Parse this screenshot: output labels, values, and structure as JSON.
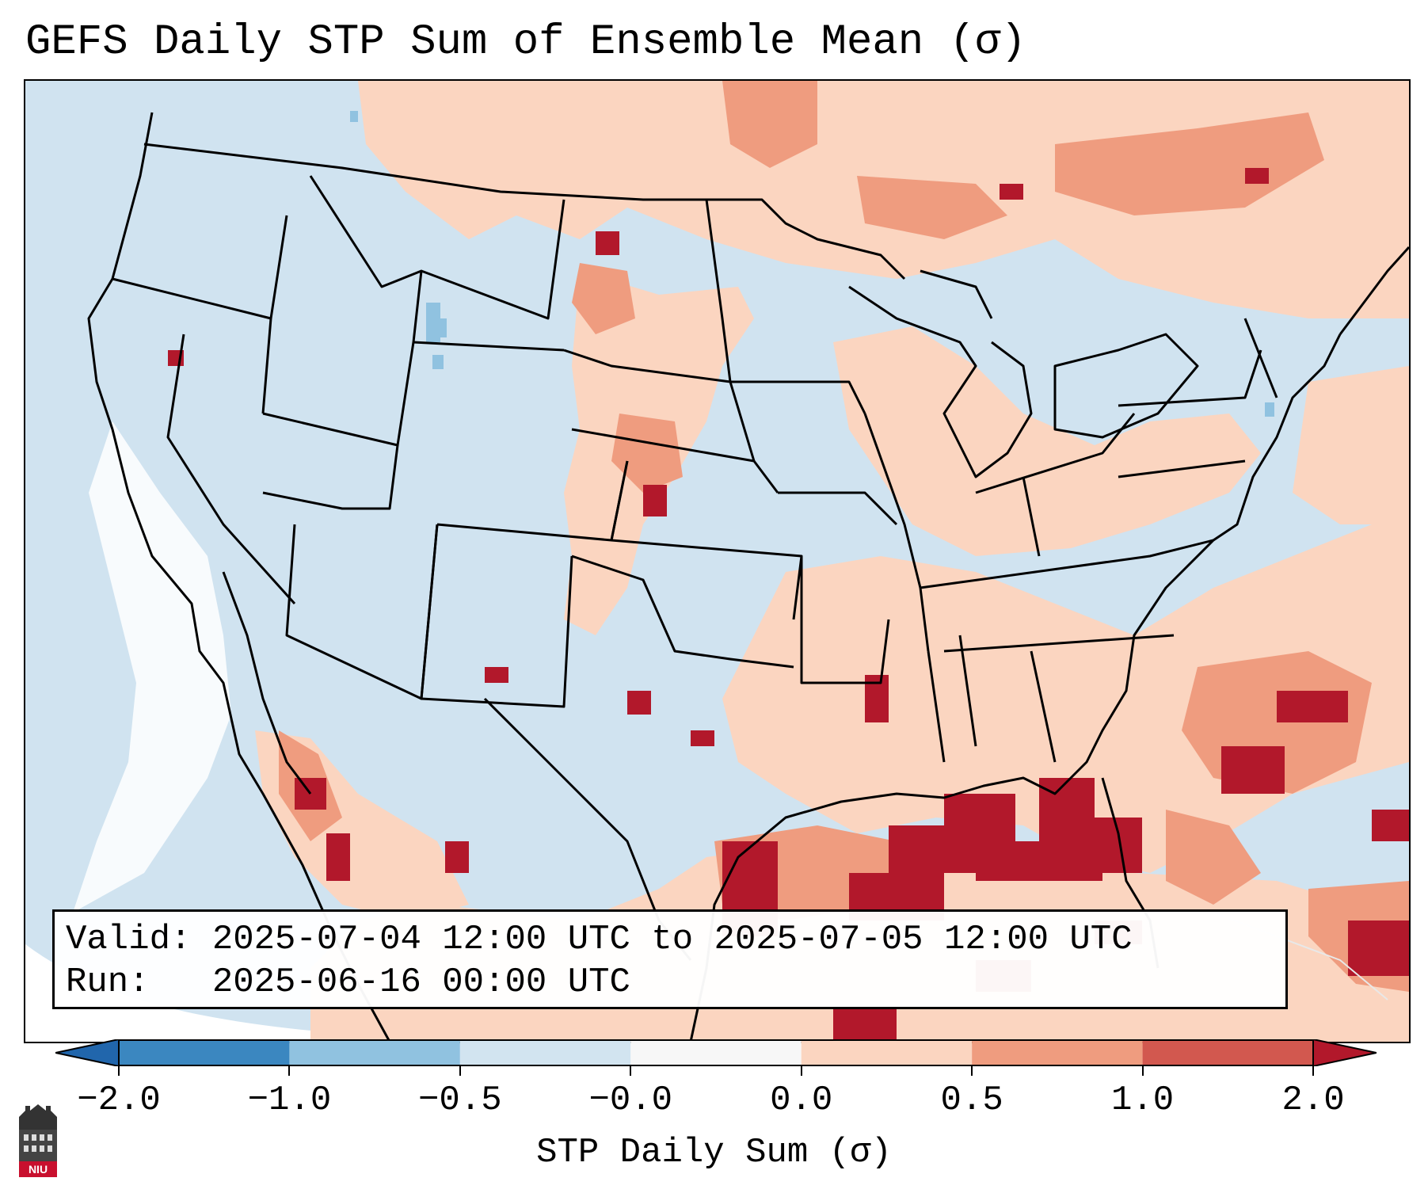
{
  "title": "GEFS Daily STP Sum of Ensemble Mean (σ)",
  "info": {
    "valid_line": "Valid: 2025-07-04 12:00 UTC to 2025-07-05 12:00 UTC",
    "run_line": "Run:   2025-06-16 00:00 UTC"
  },
  "colorbar": {
    "label": "STP Daily Sum (σ)",
    "ticks": [
      "−2.0",
      "−1.0",
      "−0.5",
      "−0.0",
      "0.0",
      "0.5",
      "1.0",
      "2.0"
    ],
    "colors": [
      "#3b87c0",
      "#90c2e0",
      "#d2e4f0",
      "#f7f7f7",
      "#fbd5c0",
      "#ef9c7f",
      "#d2584f"
    ],
    "extend_min_color": "#2166ac",
    "extend_max_color": "#b2182b"
  },
  "logo_text": "NIU"
}
